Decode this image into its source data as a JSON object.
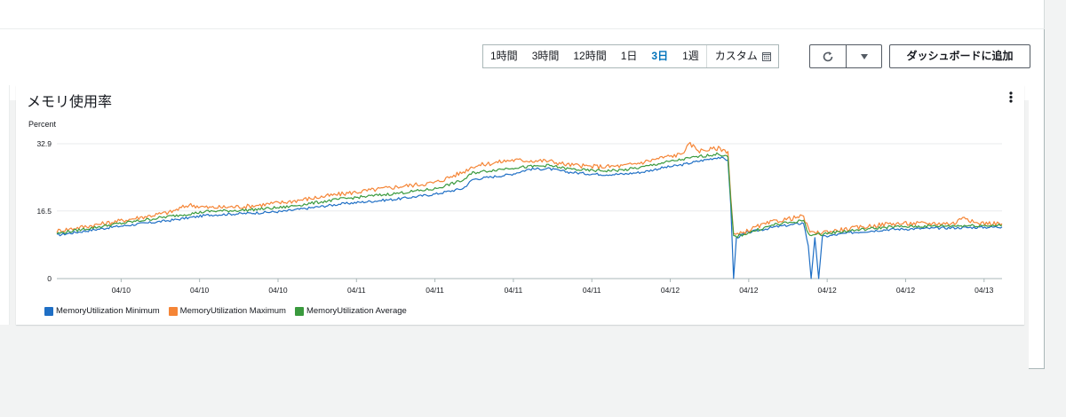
{
  "toolbar": {
    "time_ranges": [
      {
        "label": "1時間",
        "active": false
      },
      {
        "label": "3時間",
        "active": false
      },
      {
        "label": "12時間",
        "active": false
      },
      {
        "label": "1日",
        "active": false
      },
      {
        "label": "3日",
        "active": true
      },
      {
        "label": "1週",
        "active": false
      }
    ],
    "custom_label": "カスタム",
    "add_to_dashboard_label": "ダッシュボードに追加"
  },
  "widget": {
    "title": "メモリ使用率"
  },
  "colors": {
    "minimum": "#1f6fc5",
    "maximum": "#f58536",
    "average": "#3a9a3e",
    "active_range": "#0073bb"
  },
  "chart_data": {
    "type": "line",
    "ylabel": "Percent",
    "ylim": [
      0,
      32.9
    ],
    "yticks": [
      "32.9",
      "16.5",
      "0"
    ],
    "xticks": [
      "04/10",
      "04/10",
      "04/10",
      "04/11",
      "04/11",
      "04/11",
      "04/11",
      "04/12",
      "04/12",
      "04/12",
      "04/12",
      "04/13"
    ],
    "x_index_range": [
      0,
      100
    ],
    "grid": true,
    "legend_position": "bottom-left",
    "series": [
      {
        "name": "MemoryUtilization Minimum",
        "color": "#1f6fc5",
        "points": [
          [
            0,
            10.6
          ],
          [
            6,
            12.6
          ],
          [
            12,
            14.2
          ],
          [
            16,
            15.5
          ],
          [
            20,
            15.9
          ],
          [
            24,
            16.4
          ],
          [
            30,
            18.2
          ],
          [
            36,
            19.4
          ],
          [
            40,
            20.6
          ],
          [
            43,
            22.0
          ],
          [
            44,
            24.2
          ],
          [
            48,
            25.4
          ],
          [
            50,
            26.7
          ],
          [
            52,
            26.8
          ],
          [
            54,
            26.0
          ],
          [
            56,
            25.6
          ],
          [
            58,
            25.4
          ],
          [
            60,
            25.5
          ],
          [
            62,
            26.0
          ],
          [
            64,
            27.0
          ],
          [
            66,
            27.7
          ],
          [
            68,
            28.7
          ],
          [
            70,
            29.6
          ],
          [
            71,
            28.9
          ],
          [
            71.3,
            18.0
          ],
          [
            71.6,
            0
          ],
          [
            71.9,
            10.0
          ],
          [
            73,
            11.2
          ],
          [
            76,
            12.6
          ],
          [
            78,
            13.2
          ],
          [
            79,
            13.6
          ],
          [
            79.5,
            8.0
          ],
          [
            79.8,
            0
          ],
          [
            80.2,
            10.0
          ],
          [
            80.6,
            0
          ],
          [
            81,
            10.2
          ],
          [
            84,
            11.2
          ],
          [
            88,
            12.0
          ],
          [
            95,
            12.4
          ],
          [
            100,
            12.6
          ]
        ]
      },
      {
        "name": "MemoryUtilization Maximum",
        "color": "#f58536",
        "points": [
          [
            0,
            11.6
          ],
          [
            6,
            13.8
          ],
          [
            12,
            16.2
          ],
          [
            14,
            18.0
          ],
          [
            16,
            17.3
          ],
          [
            20,
            17.6
          ],
          [
            24,
            18.6
          ],
          [
            30,
            20.6
          ],
          [
            36,
            22.4
          ],
          [
            40,
            23.4
          ],
          [
            43,
            26.0
          ],
          [
            44,
            27.4
          ],
          [
            48,
            28.9
          ],
          [
            52,
            28.7
          ],
          [
            54,
            27.8
          ],
          [
            56,
            27.4
          ],
          [
            58,
            27.3
          ],
          [
            60,
            27.5
          ],
          [
            62,
            28.4
          ],
          [
            64,
            29.5
          ],
          [
            66,
            30.3
          ],
          [
            67,
            32.8
          ],
          [
            68,
            31.2
          ],
          [
            70,
            31.8
          ],
          [
            71,
            31.0
          ],
          [
            71.3,
            20.0
          ],
          [
            71.6,
            11.0
          ],
          [
            72,
            10.6
          ],
          [
            74,
            12.6
          ],
          [
            76,
            14.0
          ],
          [
            78,
            14.8
          ],
          [
            79,
            15.2
          ],
          [
            79.5,
            12.0
          ],
          [
            80,
            11.0
          ],
          [
            82,
            11.6
          ],
          [
            84,
            12.2
          ],
          [
            88,
            13.4
          ],
          [
            95,
            13.5
          ],
          [
            96,
            15.3
          ],
          [
            97,
            13.6
          ],
          [
            100,
            13.4
          ]
        ]
      },
      {
        "name": "MemoryUtilization Average",
        "color": "#3a9a3e",
        "points": [
          [
            0,
            11.0
          ],
          [
            6,
            13.2
          ],
          [
            12,
            15.2
          ],
          [
            16,
            16.4
          ],
          [
            20,
            16.7
          ],
          [
            24,
            17.4
          ],
          [
            30,
            19.4
          ],
          [
            36,
            20.8
          ],
          [
            40,
            21.9
          ],
          [
            43,
            24.0
          ],
          [
            44,
            25.8
          ],
          [
            48,
            27.0
          ],
          [
            52,
            27.6
          ],
          [
            54,
            26.8
          ],
          [
            56,
            26.4
          ],
          [
            58,
            26.3
          ],
          [
            60,
            26.5
          ],
          [
            62,
            27.2
          ],
          [
            64,
            28.2
          ],
          [
            66,
            29.0
          ],
          [
            68,
            29.8
          ],
          [
            70,
            30.4
          ],
          [
            71,
            29.7
          ],
          [
            71.3,
            19.0
          ],
          [
            71.6,
            10.5
          ],
          [
            72,
            10.3
          ],
          [
            74,
            11.8
          ],
          [
            76,
            13.2
          ],
          [
            78,
            13.8
          ],
          [
            79,
            14.2
          ],
          [
            79.5,
            11.0
          ],
          [
            80,
            10.6
          ],
          [
            82,
            11.2
          ],
          [
            84,
            11.7
          ],
          [
            88,
            12.6
          ],
          [
            95,
            12.9
          ],
          [
            100,
            13.0
          ]
        ]
      }
    ]
  }
}
